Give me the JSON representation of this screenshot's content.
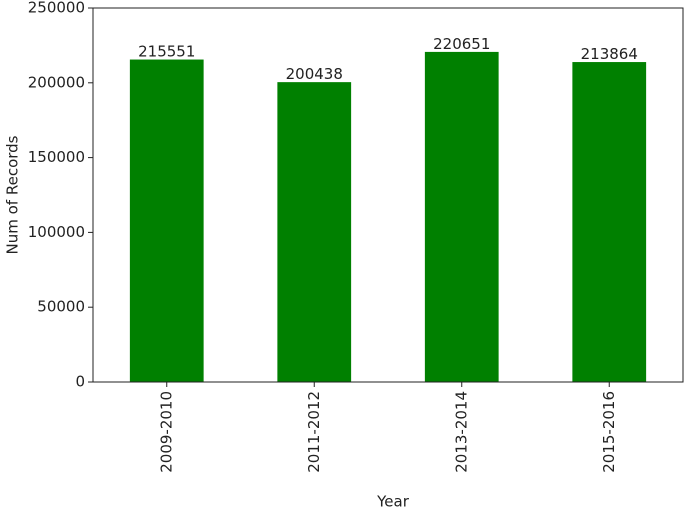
{
  "chart_data": {
    "type": "bar",
    "x_label": "Year",
    "y_label": "Num of Records",
    "categories": [
      "2009-2010",
      "2011-2012",
      "2013-2014",
      "2015-2016"
    ],
    "values": [
      215551,
      200438,
      220651,
      213864
    ],
    "color": "#008000",
    "ylim": [
      0,
      250000
    ],
    "yticks": [
      0,
      50000,
      100000,
      150000,
      200000,
      250000
    ]
  }
}
